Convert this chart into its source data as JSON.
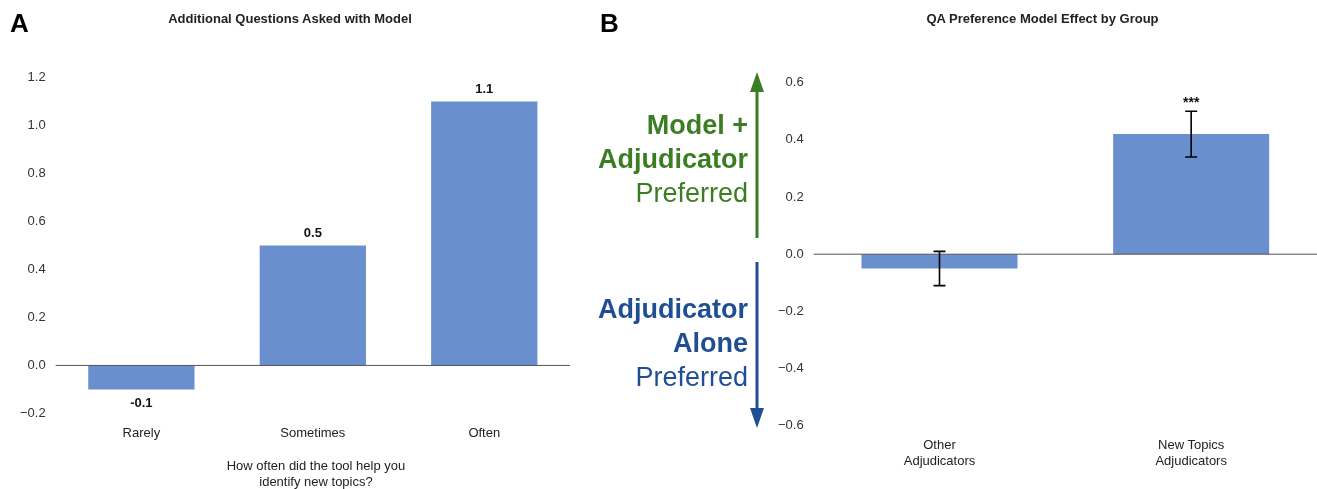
{
  "chart_data": [
    {
      "type": "bar",
      "title": "Additional Questions Asked with Model",
      "xlabel": "How often did the tool help you identify new topics?",
      "categories": [
        "Rarely",
        "Sometimes",
        "Often"
      ],
      "values": [
        -0.1,
        0.5,
        1.1
      ],
      "color": "#6a8fcf",
      "data_labels": true,
      "ylim": [
        -0.2,
        1.2
      ],
      "yticks": [
        {
          "value": -0.2,
          "label": "−0.2"
        },
        {
          "value": 0,
          "label": "0.0"
        },
        0.2,
        0.4,
        0.6,
        0.8,
        {
          "value": 1,
          "label": "1.0"
        },
        1.2
      ],
      "annotations": [
        "A"
      ]
    },
    {
      "type": "bar",
      "title": "QA Preference Model Effect by Group",
      "categories": [
        "Other Adjudicators",
        "New Topics Adjudicators"
      ],
      "values": [
        -0.05,
        0.42
      ],
      "color": "#6a8fcf",
      "errors": [
        [
          -0.11,
          0.01
        ],
        [
          0.34,
          0.5
        ]
      ],
      "ylim": [
        -0.6,
        0.6
      ],
      "yticks": [
        {
          "value": -0.6,
          "label": "−0.6"
        },
        {
          "value": -0.4,
          "label": "−0.4"
        },
        {
          "value": -0.2,
          "label": "−0.2"
        },
        {
          "value": 0,
          "label": "0.0"
        },
        0.2,
        0.4,
        0.6
      ],
      "annotations": [
        "B",
        "Model + Adjudicator Preferred",
        "Adjudicator Alone Preferred",
        {
          "text": "***",
          "x": "New Topics Adjudicators",
          "y": 0.5
        }
      ]
    }
  ]
}
